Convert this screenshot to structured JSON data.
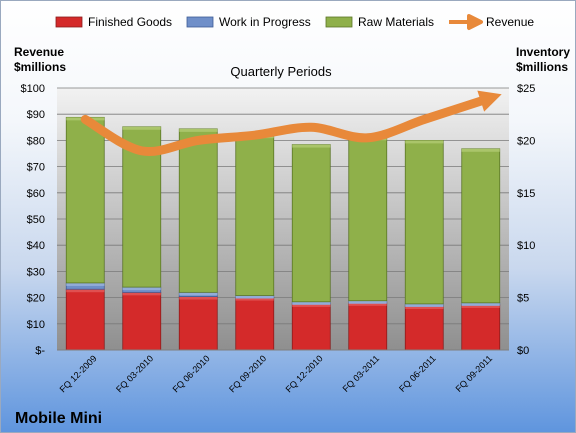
{
  "chart_data": {
    "type": "bar",
    "subtitle": "Quarterly Periods",
    "company": "Mobile Mini",
    "left_axis_title": [
      "Revenue",
      "$millions"
    ],
    "right_axis_title": [
      "Inventory",
      "$millions"
    ],
    "left_axis_ticks": [
      "$-",
      "$10",
      "$20",
      "$30",
      "$40",
      "$50",
      "$60",
      "$70",
      "$80",
      "$90",
      "$100"
    ],
    "right_axis_ticks": [
      "$0",
      "$5",
      "$10",
      "$15",
      "$20",
      "$25"
    ],
    "left_ylim": [
      0,
      100
    ],
    "right_ylim": [
      0,
      25
    ],
    "categories": [
      "FQ 12-2009",
      "FQ 03-2010",
      "FQ 06-2010",
      "FQ 09-2010",
      "FQ 12-2010",
      "FQ 03-2011",
      "FQ 06-2011",
      "FQ 09-2011"
    ],
    "series": [
      {
        "name": "Finished Goods",
        "axis": "right",
        "stacked": true,
        "color": "#d42a2a",
        "values": [
          5.8,
          5.5,
          5.1,
          5.0,
          4.4,
          4.5,
          4.2,
          4.3
        ]
      },
      {
        "name": "Work in Progress",
        "axis": "right",
        "stacked": true,
        "color": "#6f8fc9",
        "values": [
          0.6,
          0.5,
          0.4,
          0.2,
          0.2,
          0.2,
          0.2,
          0.2
        ]
      },
      {
        "name": "Raw Materials",
        "axis": "right",
        "stacked": true,
        "color": "#8fb04a",
        "values": [
          15.8,
          15.3,
          15.6,
          15.3,
          15.0,
          15.6,
          15.6,
          14.7
        ]
      },
      {
        "name": "Revenue",
        "axis": "left",
        "type": "line",
        "color": "#e8893a",
        "values": [
          88,
          76,
          80,
          82,
          85,
          81,
          88,
          95
        ]
      }
    ],
    "grid": true,
    "legend": "top"
  }
}
